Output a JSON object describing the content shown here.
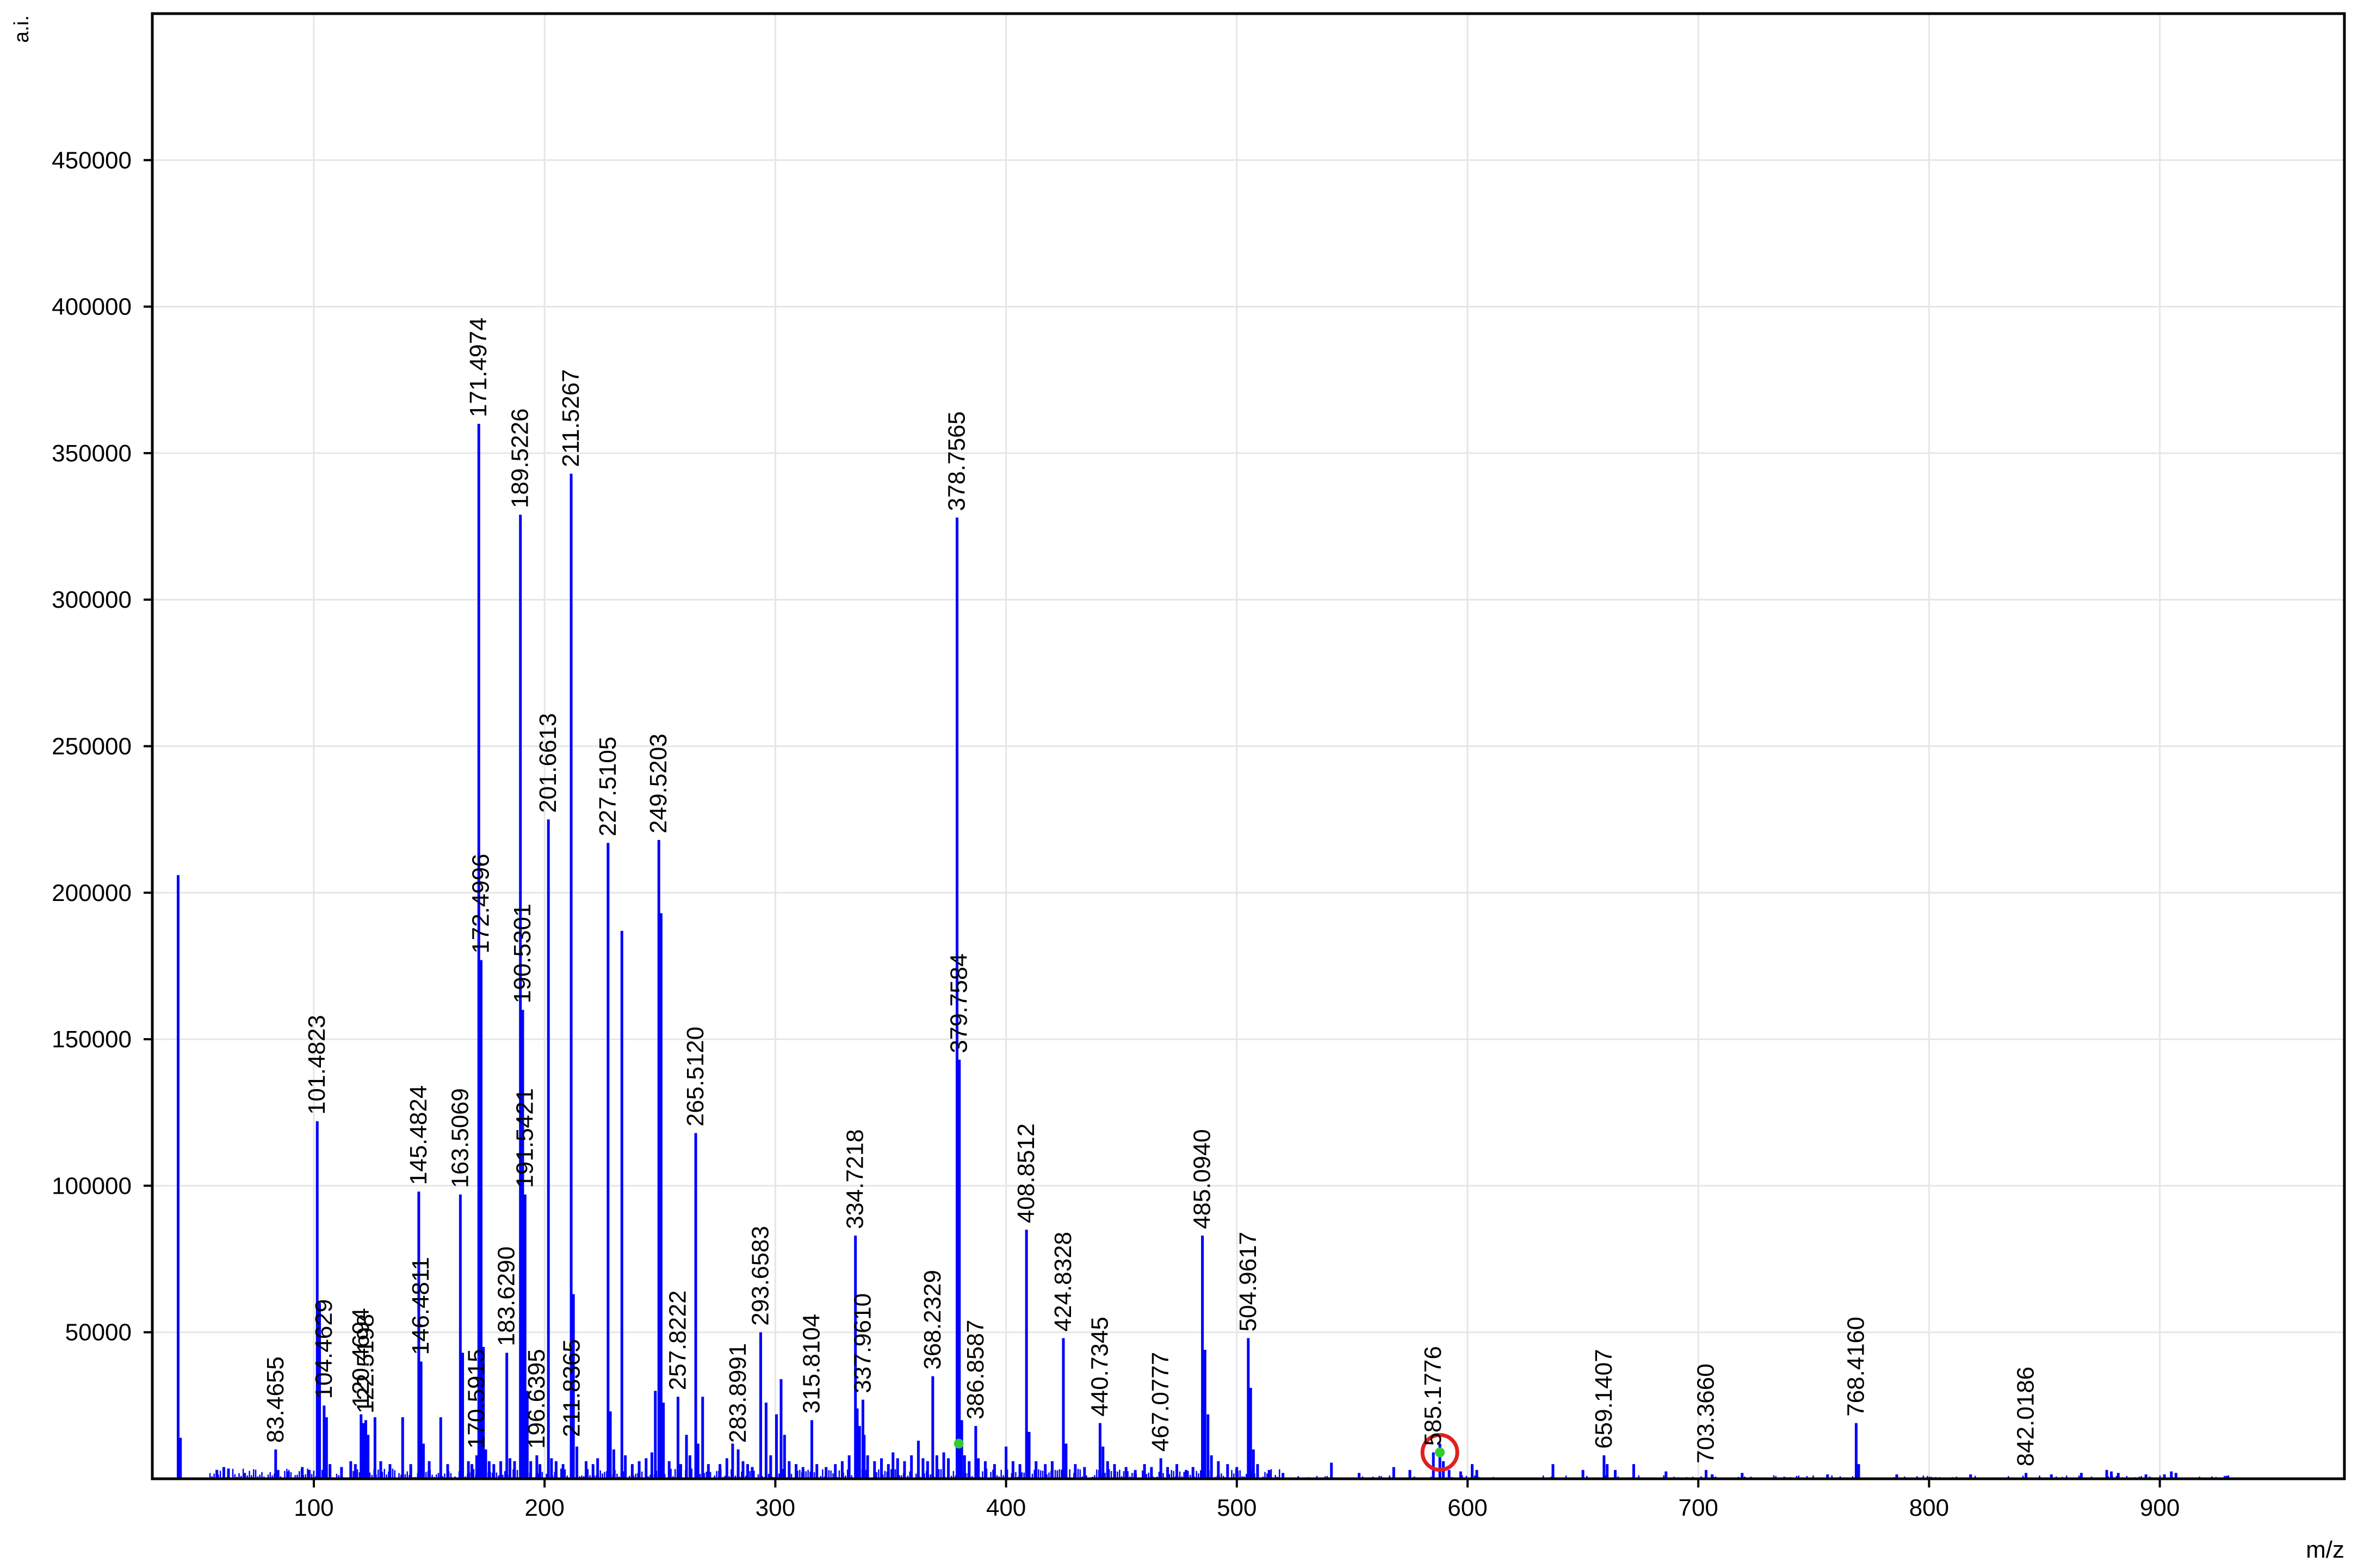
{
  "chart_data": {
    "type": "bar",
    "subtype": "mass-spectrum-stick",
    "ylabel": "a.i.",
    "xlabel": "m/z",
    "xlim": [
      30,
      980
    ],
    "ylim": [
      0,
      500000
    ],
    "xticks": [
      100,
      200,
      300,
      400,
      500,
      600,
      700,
      800,
      900
    ],
    "yticks": [
      50000,
      100000,
      150000,
      200000,
      250000,
      300000,
      350000,
      400000,
      450000
    ],
    "grid": true,
    "colors": {
      "peak": "#0000ff",
      "grid": "#e6e6e6",
      "axis": "#000000",
      "marker": "#33cc33",
      "highlight": "#e02020"
    },
    "labeled_peaks": [
      {
        "mz": 83.4655,
        "intensity": 10000,
        "label": "83.4655"
      },
      {
        "mz": 101.4823,
        "intensity": 122000,
        "label": "101.4823"
      },
      {
        "mz": 104.4629,
        "intensity": 25000,
        "label": "104.4629"
      },
      {
        "mz": 120.4694,
        "intensity": 22000,
        "label": "120.4694"
      },
      {
        "mz": 122.5198,
        "intensity": 20000,
        "label": "122.5198"
      },
      {
        "mz": 145.4824,
        "intensity": 98000,
        "label": "145.4824"
      },
      {
        "mz": 146.4811,
        "intensity": 40000,
        "label": "146.4811"
      },
      {
        "mz": 163.5069,
        "intensity": 97000,
        "label": "163.5069"
      },
      {
        "mz": 170.5915,
        "intensity": 8000,
        "label": "170.5915"
      },
      {
        "mz": 171.4974,
        "intensity": 360000,
        "label": "171.4974"
      },
      {
        "mz": 172.4996,
        "intensity": 177000,
        "label": "172.4996"
      },
      {
        "mz": 183.629,
        "intensity": 43000,
        "label": "183.6290"
      },
      {
        "mz": 189.5226,
        "intensity": 329000,
        "label": "189.5226"
      },
      {
        "mz": 190.5301,
        "intensity": 160000,
        "label": "190.5301"
      },
      {
        "mz": 191.5421,
        "intensity": 97000,
        "label": "191.5421"
      },
      {
        "mz": 196.6395,
        "intensity": 8000,
        "label": "196.6395"
      },
      {
        "mz": 201.6613,
        "intensity": 225000,
        "label": "201.6613"
      },
      {
        "mz": 211.5267,
        "intensity": 343000,
        "label": "211.5267"
      },
      {
        "mz": 211.8365,
        "intensity": 12000,
        "label": "211.8365"
      },
      {
        "mz": 227.5105,
        "intensity": 217000,
        "label": "227.5105"
      },
      {
        "mz": 249.5203,
        "intensity": 218000,
        "label": "249.5203"
      },
      {
        "mz": 257.8222,
        "intensity": 28000,
        "label": "257.8222"
      },
      {
        "mz": 265.512,
        "intensity": 118000,
        "label": "265.5120"
      },
      {
        "mz": 283.8991,
        "intensity": 10000,
        "label": "283.8991"
      },
      {
        "mz": 293.6583,
        "intensity": 50000,
        "label": "293.6583"
      },
      {
        "mz": 315.8104,
        "intensity": 20000,
        "label": "315.8104"
      },
      {
        "mz": 334.7218,
        "intensity": 83000,
        "label": "334.7218"
      },
      {
        "mz": 337.961,
        "intensity": 27000,
        "label": "337.9610"
      },
      {
        "mz": 368.2329,
        "intensity": 35000,
        "label": "368.2329"
      },
      {
        "mz": 378.7565,
        "intensity": 328000,
        "label": "378.7565"
      },
      {
        "mz": 379.7584,
        "intensity": 143000,
        "label": "379.7584"
      },
      {
        "mz": 386.8587,
        "intensity": 18000,
        "label": "386.8587"
      },
      {
        "mz": 408.8512,
        "intensity": 85000,
        "label": "408.8512"
      },
      {
        "mz": 424.8328,
        "intensity": 48000,
        "label": "424.8328"
      },
      {
        "mz": 440.7345,
        "intensity": 19000,
        "label": "440.7345"
      },
      {
        "mz": 467.0777,
        "intensity": 7000,
        "label": "467.0777"
      },
      {
        "mz": 485.094,
        "intensity": 83000,
        "label": "485.0940"
      },
      {
        "mz": 504.9617,
        "intensity": 48000,
        "label": "504.9617"
      },
      {
        "mz": 585.1776,
        "intensity": 9000,
        "label": "585.1776"
      },
      {
        "mz": 659.1407,
        "intensity": 8000,
        "label": "659.1407"
      },
      {
        "mz": 703.366,
        "intensity": 3000,
        "label": "703.3660"
      },
      {
        "mz": 768.416,
        "intensity": 19000,
        "label": "768.4160"
      },
      {
        "mz": 842.0186,
        "intensity": 2000,
        "label": "842.0186"
      }
    ],
    "unlabeled_peaks": [
      {
        "mz": 41.2,
        "intensity": 206000
      },
      {
        "mz": 42.2,
        "intensity": 14000
      },
      {
        "mz": 58,
        "intensity": 3000
      },
      {
        "mz": 61,
        "intensity": 4000
      },
      {
        "mz": 63,
        "intensity": 3500
      },
      {
        "mz": 70,
        "intensity": 2000
      },
      {
        "mz": 84.5,
        "intensity": 3000
      },
      {
        "mz": 89,
        "intensity": 2500
      },
      {
        "mz": 95,
        "intensity": 4000
      },
      {
        "mz": 98,
        "intensity": 3000
      },
      {
        "mz": 102.5,
        "intensity": 60000
      },
      {
        "mz": 105.5,
        "intensity": 21000
      },
      {
        "mz": 107,
        "intensity": 5000
      },
      {
        "mz": 112,
        "intensity": 4000
      },
      {
        "mz": 116,
        "intensity": 6000
      },
      {
        "mz": 118,
        "intensity": 5000
      },
      {
        "mz": 121.5,
        "intensity": 19000
      },
      {
        "mz": 123.5,
        "intensity": 15000
      },
      {
        "mz": 126.5,
        "intensity": 21000
      },
      {
        "mz": 129,
        "intensity": 6000
      },
      {
        "mz": 133,
        "intensity": 5000
      },
      {
        "mz": 138.5,
        "intensity": 21000
      },
      {
        "mz": 142,
        "intensity": 5000
      },
      {
        "mz": 147.5,
        "intensity": 12000
      },
      {
        "mz": 150,
        "intensity": 6000
      },
      {
        "mz": 155,
        "intensity": 21000
      },
      {
        "mz": 158,
        "intensity": 5000
      },
      {
        "mz": 164.5,
        "intensity": 43000
      },
      {
        "mz": 167,
        "intensity": 6000
      },
      {
        "mz": 168.5,
        "intensity": 5000
      },
      {
        "mz": 173.5,
        "intensity": 45000
      },
      {
        "mz": 174.5,
        "intensity": 10000
      },
      {
        "mz": 176,
        "intensity": 6000
      },
      {
        "mz": 178,
        "intensity": 5000
      },
      {
        "mz": 181,
        "intensity": 6000
      },
      {
        "mz": 185,
        "intensity": 7000
      },
      {
        "mz": 187,
        "intensity": 6000
      },
      {
        "mz": 192.5,
        "intensity": 30000
      },
      {
        "mz": 194,
        "intensity": 6000
      },
      {
        "mz": 198,
        "intensity": 5000
      },
      {
        "mz": 203,
        "intensity": 7000
      },
      {
        "mz": 205,
        "intensity": 6000
      },
      {
        "mz": 208,
        "intensity": 5000
      },
      {
        "mz": 212.5,
        "intensity": 63000
      },
      {
        "mz": 214,
        "intensity": 11000
      },
      {
        "mz": 218,
        "intensity": 6000
      },
      {
        "mz": 221,
        "intensity": 5000
      },
      {
        "mz": 223,
        "intensity": 7000
      },
      {
        "mz": 228.5,
        "intensity": 23000
      },
      {
        "mz": 230,
        "intensity": 10000
      },
      {
        "mz": 233.5,
        "intensity": 187000
      },
      {
        "mz": 235,
        "intensity": 8000
      },
      {
        "mz": 238,
        "intensity": 5000
      },
      {
        "mz": 241,
        "intensity": 6000
      },
      {
        "mz": 244,
        "intensity": 7000
      },
      {
        "mz": 246.5,
        "intensity": 9000
      },
      {
        "mz": 248,
        "intensity": 30000
      },
      {
        "mz": 250.5,
        "intensity": 193000
      },
      {
        "mz": 251.5,
        "intensity": 26000
      },
      {
        "mz": 254,
        "intensity": 6000
      },
      {
        "mz": 259,
        "intensity": 5000
      },
      {
        "mz": 261.5,
        "intensity": 15000
      },
      {
        "mz": 263,
        "intensity": 8000
      },
      {
        "mz": 266.5,
        "intensity": 12000
      },
      {
        "mz": 268.5,
        "intensity": 28000
      },
      {
        "mz": 271,
        "intensity": 5000
      },
      {
        "mz": 276,
        "intensity": 5000
      },
      {
        "mz": 279,
        "intensity": 7000
      },
      {
        "mz": 281.5,
        "intensity": 12000
      },
      {
        "mz": 286,
        "intensity": 6000
      },
      {
        "mz": 288,
        "intensity": 5000
      },
      {
        "mz": 290,
        "intensity": 4000
      },
      {
        "mz": 296,
        "intensity": 26000
      },
      {
        "mz": 298,
        "intensity": 8000
      },
      {
        "mz": 300.5,
        "intensity": 22000
      },
      {
        "mz": 302.5,
        "intensity": 34000
      },
      {
        "mz": 304,
        "intensity": 15000
      },
      {
        "mz": 306,
        "intensity": 6000
      },
      {
        "mz": 309,
        "intensity": 5000
      },
      {
        "mz": 312,
        "intensity": 4000
      },
      {
        "mz": 318,
        "intensity": 5000
      },
      {
        "mz": 322,
        "intensity": 4000
      },
      {
        "mz": 326,
        "intensity": 5000
      },
      {
        "mz": 329,
        "intensity": 6000
      },
      {
        "mz": 332,
        "intensity": 8000
      },
      {
        "mz": 335.5,
        "intensity": 24000
      },
      {
        "mz": 336.5,
        "intensity": 18000
      },
      {
        "mz": 338.5,
        "intensity": 15000
      },
      {
        "mz": 340,
        "intensity": 8000
      },
      {
        "mz": 343,
        "intensity": 6000
      },
      {
        "mz": 346,
        "intensity": 7000
      },
      {
        "mz": 349,
        "intensity": 5000
      },
      {
        "mz": 351,
        "intensity": 9000
      },
      {
        "mz": 353,
        "intensity": 7000
      },
      {
        "mz": 356,
        "intensity": 6000
      },
      {
        "mz": 359,
        "intensity": 8000
      },
      {
        "mz": 362,
        "intensity": 13000
      },
      {
        "mz": 364,
        "intensity": 7000
      },
      {
        "mz": 366,
        "intensity": 6000
      },
      {
        "mz": 370,
        "intensity": 8000
      },
      {
        "mz": 373,
        "intensity": 9000
      },
      {
        "mz": 375,
        "intensity": 7000
      },
      {
        "mz": 380.8,
        "intensity": 20000
      },
      {
        "mz": 382,
        "intensity": 8000
      },
      {
        "mz": 384,
        "intensity": 6000
      },
      {
        "mz": 388,
        "intensity": 7000
      },
      {
        "mz": 391,
        "intensity": 6000
      },
      {
        "mz": 395,
        "intensity": 5000
      },
      {
        "mz": 400,
        "intensity": 11000
      },
      {
        "mz": 403,
        "intensity": 6000
      },
      {
        "mz": 406,
        "intensity": 5000
      },
      {
        "mz": 410,
        "intensity": 16000
      },
      {
        "mz": 413,
        "intensity": 6000
      },
      {
        "mz": 417,
        "intensity": 5000
      },
      {
        "mz": 420,
        "intensity": 6000
      },
      {
        "mz": 426,
        "intensity": 12000
      },
      {
        "mz": 430,
        "intensity": 5000
      },
      {
        "mz": 434,
        "intensity": 4000
      },
      {
        "mz": 442,
        "intensity": 11000
      },
      {
        "mz": 444,
        "intensity": 6000
      },
      {
        "mz": 447,
        "intensity": 5000
      },
      {
        "mz": 452,
        "intensity": 4000
      },
      {
        "mz": 456,
        "intensity": 3000
      },
      {
        "mz": 460,
        "intensity": 5000
      },
      {
        "mz": 463,
        "intensity": 4000
      },
      {
        "mz": 470,
        "intensity": 4000
      },
      {
        "mz": 474,
        "intensity": 5000
      },
      {
        "mz": 478,
        "intensity": 3000
      },
      {
        "mz": 481,
        "intensity": 4000
      },
      {
        "mz": 486.2,
        "intensity": 44000
      },
      {
        "mz": 487.5,
        "intensity": 22000
      },
      {
        "mz": 489,
        "intensity": 8000
      },
      {
        "mz": 492,
        "intensity": 6000
      },
      {
        "mz": 496,
        "intensity": 5000
      },
      {
        "mz": 500,
        "intensity": 4000
      },
      {
        "mz": 506,
        "intensity": 31000
      },
      {
        "mz": 507.2,
        "intensity": 10000
      },
      {
        "mz": 509,
        "intensity": 5000
      },
      {
        "mz": 514,
        "intensity": 3000
      },
      {
        "mz": 520,
        "intensity": 2000
      },
      {
        "mz": 541,
        "intensity": 5500
      },
      {
        "mz": 553,
        "intensity": 2000
      },
      {
        "mz": 568,
        "intensity": 4000
      },
      {
        "mz": 575,
        "intensity": 3000
      },
      {
        "mz": 588,
        "intensity": 12000
      },
      {
        "mz": 589.5,
        "intensity": 6000
      },
      {
        "mz": 592,
        "intensity": 3000
      },
      {
        "mz": 597,
        "intensity": 2500
      },
      {
        "mz": 602,
        "intensity": 5000
      },
      {
        "mz": 604,
        "intensity": 3000
      },
      {
        "mz": 637,
        "intensity": 5000
      },
      {
        "mz": 650,
        "intensity": 3000
      },
      {
        "mz": 660.5,
        "intensity": 5000
      },
      {
        "mz": 664,
        "intensity": 3000
      },
      {
        "mz": 672,
        "intensity": 5000
      },
      {
        "mz": 686,
        "intensity": 2500
      },
      {
        "mz": 706,
        "intensity": 1500
      },
      {
        "mz": 719,
        "intensity": 2000
      },
      {
        "mz": 756,
        "intensity": 1500
      },
      {
        "mz": 769.5,
        "intensity": 5000
      },
      {
        "mz": 786,
        "intensity": 1500
      },
      {
        "mz": 818,
        "intensity": 1500
      },
      {
        "mz": 853,
        "intensity": 1500
      },
      {
        "mz": 866,
        "intensity": 2000
      },
      {
        "mz": 877,
        "intensity": 3000
      },
      {
        "mz": 879,
        "intensity": 2500
      },
      {
        "mz": 882,
        "intensity": 2000
      },
      {
        "mz": 894,
        "intensity": 1500
      },
      {
        "mz": 902,
        "intensity": 1500
      },
      {
        "mz": 905,
        "intensity": 2500
      },
      {
        "mz": 907,
        "intensity": 2000
      },
      {
        "mz": 929,
        "intensity": 1000
      }
    ],
    "markers": [
      {
        "mz": 379.5,
        "intensity": 12000,
        "shape": "dot",
        "color": "#33cc33"
      },
      {
        "mz": 588.0,
        "intensity": 9000,
        "shape": "dot",
        "color": "#33cc33"
      }
    ],
    "highlight": {
      "mz": 588.0,
      "intensity": 9000,
      "shape": "circle",
      "color": "#e02020"
    }
  }
}
